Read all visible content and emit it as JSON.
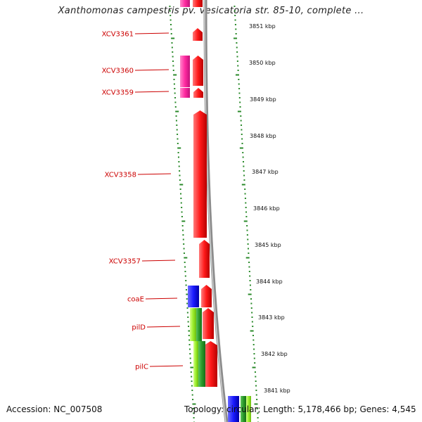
{
  "header": {
    "title": "Xanthomonas campestris pv. vesicatoria str. 85-10, complete ..."
  },
  "footer": {
    "accession": "Accession: NC_007508",
    "topology": "Topology: circular; Length: 5,178,466 bp; Genes: 4,545"
  },
  "colors": {
    "backbone": "#8c8c8c",
    "tick": "#2a8a2a",
    "label": "#cc0000",
    "forward_gene": "#ff1a1a",
    "pink_gene": "#ff2aa0",
    "blue_gene": "#1a1aff",
    "lime_gene": "#9aee2a",
    "green_gene": "#2a9a2a"
  },
  "scale_labels": [
    "3851 kbp",
    "3850 kbp",
    "3849 kbp",
    "3848 kbp",
    "3847 kbp",
    "3846 kbp",
    "3845 kbp",
    "3844 kbp",
    "3843 kbp",
    "3842 kbp",
    "3841 kbp"
  ],
  "gene_labels": [
    "XCV3361",
    "XCV3360",
    "XCV3359",
    "XCV3358",
    "XCV3357",
    "coaE",
    "pilD",
    "pilC"
  ]
}
